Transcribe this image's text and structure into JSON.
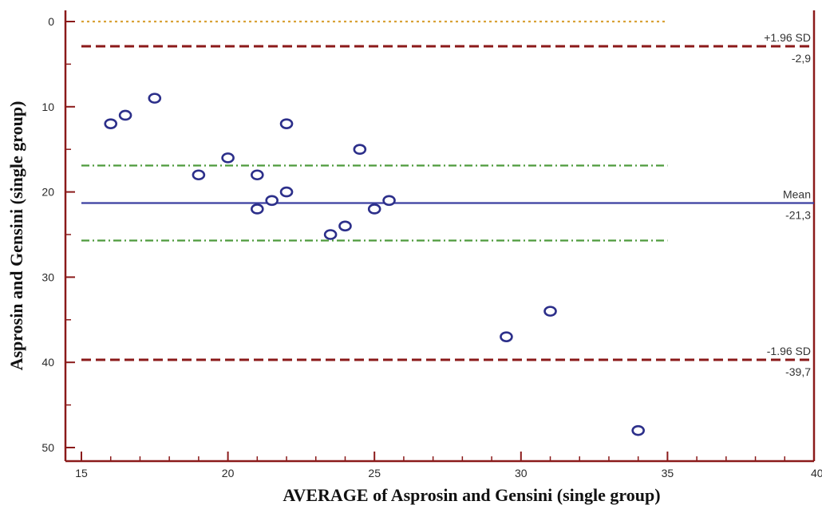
{
  "chart_data": {
    "type": "scatter",
    "xlabel": "AVERAGE of Asprosin and Gensini (single group)",
    "ylabel": "Asprosin and Gensini (single group)",
    "xlim": [
      15,
      40
    ],
    "ylim": [
      0,
      50
    ],
    "y_inverted": true,
    "grid": false,
    "x_ticks": [
      "15",
      "20",
      "25",
      "30",
      "35",
      "40"
    ],
    "y_ticks": [
      "0",
      "10",
      "20",
      "30",
      "40",
      "50"
    ],
    "points": [
      {
        "x": 16.0,
        "y": 12.0
      },
      {
        "x": 16.5,
        "y": 11.0
      },
      {
        "x": 17.5,
        "y": 9.0
      },
      {
        "x": 19.0,
        "y": 18.0
      },
      {
        "x": 20.0,
        "y": 16.0
      },
      {
        "x": 21.0,
        "y": 18.0
      },
      {
        "x": 21.0,
        "y": 22.0
      },
      {
        "x": 21.5,
        "y": 21.0
      },
      {
        "x": 22.0,
        "y": 12.0
      },
      {
        "x": 22.0,
        "y": 20.0
      },
      {
        "x": 23.5,
        "y": 25.0
      },
      {
        "x": 24.0,
        "y": 24.0
      },
      {
        "x": 24.5,
        "y": 15.0
      },
      {
        "x": 25.0,
        "y": 22.0
      },
      {
        "x": 25.5,
        "y": 21.0
      },
      {
        "x": 29.5,
        "y": 37.0
      },
      {
        "x": 31.0,
        "y": 34.0
      },
      {
        "x": 34.0,
        "y": 48.0
      }
    ],
    "reference_lines": [
      {
        "y": 0,
        "x_end": 35,
        "style": "dotted",
        "color": "#d9a236"
      },
      {
        "y": 2.9,
        "style": "dashed",
        "color": "#8b1a1a",
        "label_above": "+1.96 SD",
        "label_below": "-2,9"
      },
      {
        "y": 16.9,
        "x_end": 35,
        "style": "dashdot",
        "color": "#4e9a3c"
      },
      {
        "y": 21.3,
        "style": "solid",
        "color": "#3a3fa0",
        "label_above": "Mean",
        "label_below": "-21,3"
      },
      {
        "y": 25.7,
        "x_end": 35,
        "style": "dashdot",
        "color": "#4e9a3c"
      },
      {
        "y": 39.7,
        "style": "dashed",
        "color": "#8b1a1a",
        "label_above": "-1.96 SD",
        "label_below": "-39,7"
      }
    ],
    "colors": {
      "axis": "#8b1a1a",
      "points": "#2c2f8a"
    }
  }
}
